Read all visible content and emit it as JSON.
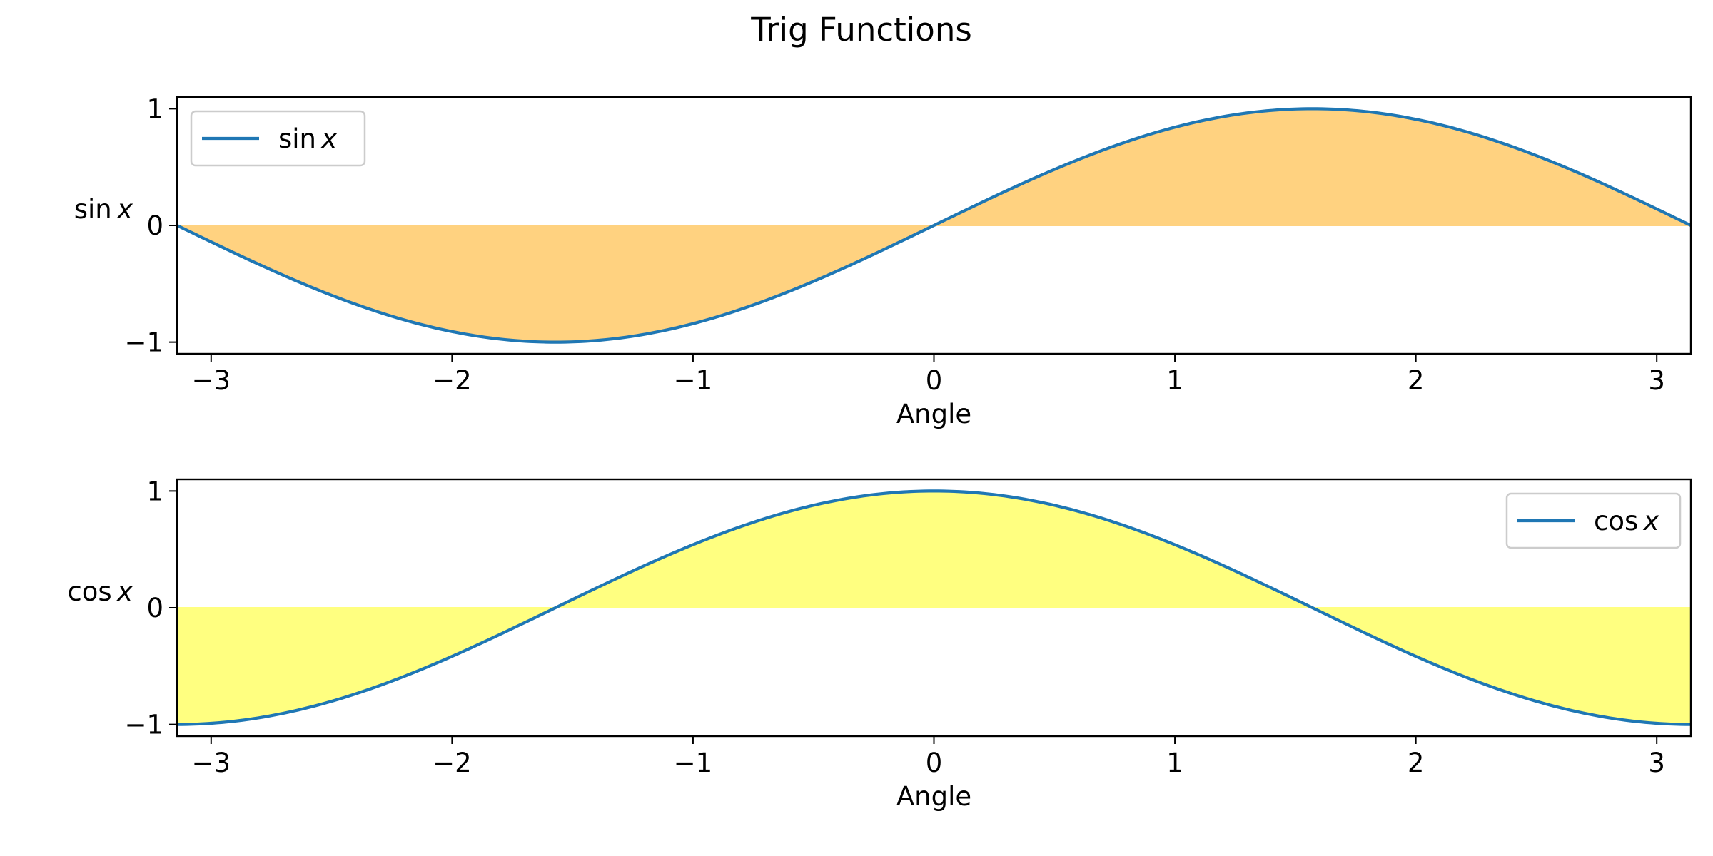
{
  "figure": {
    "title": "Trig Functions"
  },
  "chart_data": [
    {
      "type": "area",
      "title": "",
      "xlabel": "Angle",
      "ylabel": "sin x",
      "ylabel_parts": [
        "sin",
        "x"
      ],
      "xlim": [
        -3.14159,
        3.14159
      ],
      "ylim": [
        -1.1,
        1.1
      ],
      "xticks": [
        -3,
        -2,
        -1,
        0,
        1,
        2,
        3
      ],
      "yticks": [
        -1,
        0,
        1
      ],
      "grid": false,
      "legend_position": "top-left",
      "series": [
        {
          "name": "sin x",
          "name_parts": [
            "sin",
            "x"
          ],
          "function": "sin",
          "x_range": [
            -3.14159,
            3.14159
          ],
          "line_color": "#1f77b4",
          "fill_to": 0,
          "fill_color": "#ffd280"
        }
      ]
    },
    {
      "type": "area",
      "title": "",
      "xlabel": "Angle",
      "ylabel": "cos x",
      "ylabel_parts": [
        "cos",
        "x"
      ],
      "xlim": [
        -3.14159,
        3.14159
      ],
      "ylim": [
        -1.1,
        1.1
      ],
      "xticks": [
        -3,
        -2,
        -1,
        0,
        1,
        2,
        3
      ],
      "yticks": [
        -1,
        0,
        1
      ],
      "grid": false,
      "legend_position": "top-right",
      "series": [
        {
          "name": "cos x",
          "name_parts": [
            "cos",
            "x"
          ],
          "function": "cos",
          "x_range": [
            -3.14159,
            3.14159
          ],
          "line_color": "#1f77b4",
          "fill_to": 0,
          "fill_color": "#ffff80"
        }
      ]
    }
  ]
}
